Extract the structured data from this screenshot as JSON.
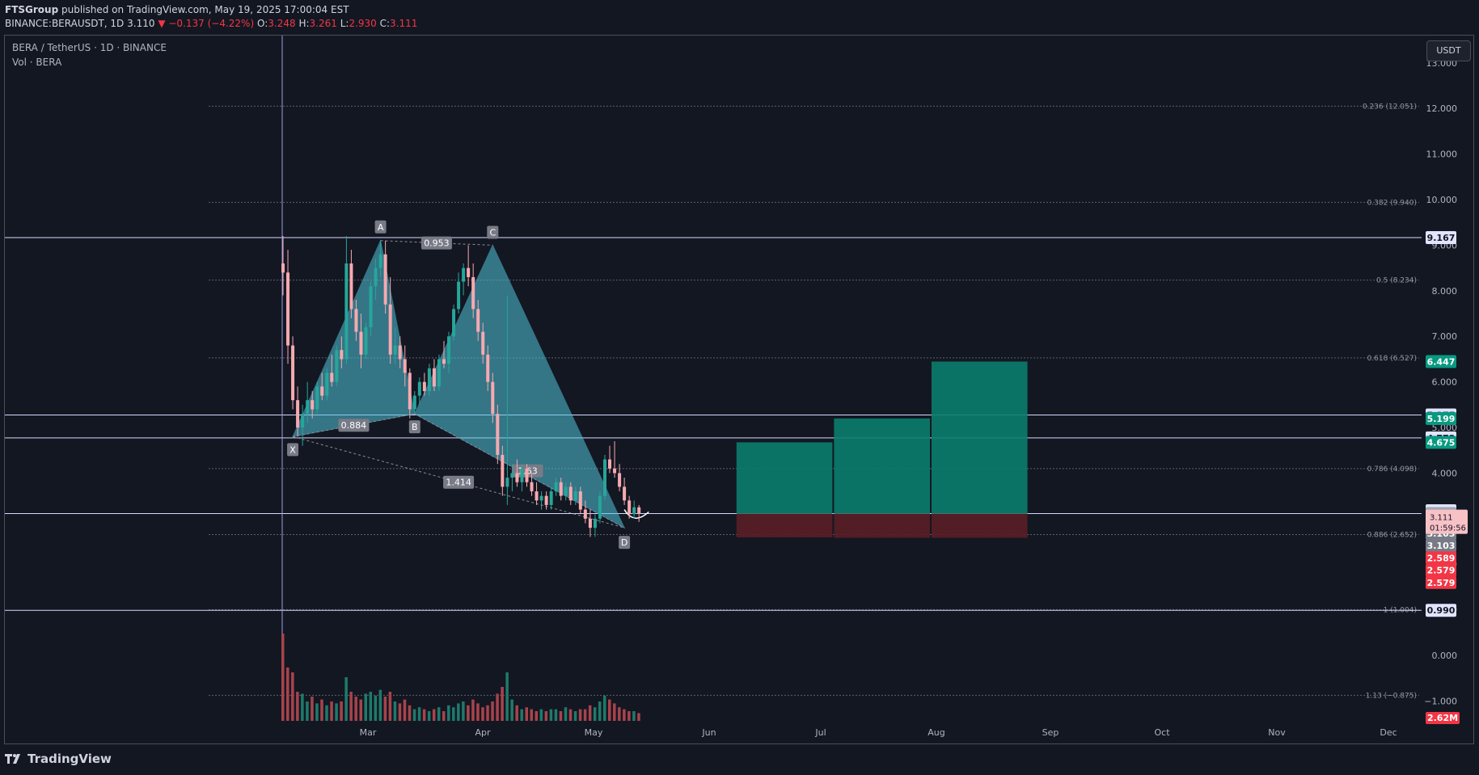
{
  "header": {
    "publisher": "FTSGroup",
    "published_text": "published on TradingView.com, May 19, 2025 17:00:04 EST",
    "ticker": "BINANCE:BERAUSDT, 1D",
    "last": "3.110",
    "change": "−0.137 (−4.22%)",
    "o_label": "O:",
    "o": "3.248",
    "h_label": "H:",
    "h": "3.261",
    "l_label": "L:",
    "l": "2.930",
    "c_label": "C:",
    "c": "3.111"
  },
  "legend": {
    "symbol": "BERA / TetherUS · 1D · BINANCE",
    "volume": "Vol · BERA"
  },
  "currency_button": "USDT",
  "footer": {
    "brand": "TradingView"
  },
  "colors": {
    "background": "#131722",
    "bull": "#26a69a",
    "bear_candle": "#f7a9b0",
    "pattern_fill": "#4fc3d9",
    "target_box": "#0b7d6e",
    "stop_box": "#5a1e26",
    "price_red": "#f23645"
  },
  "chart_data": {
    "type": "candlestick",
    "y_axis": {
      "range": [
        -1.4,
        13.6
      ],
      "ticks": [
        "13.000",
        "12.000",
        "11.000",
        "10.000",
        "9.000",
        "8.000",
        "7.000",
        "6.000",
        "5.000",
        "4.000",
        "3.000",
        "2.000",
        "1.000",
        "0.000",
        "−1.000"
      ]
    },
    "x_axis": {
      "ticks": [
        "Mar",
        "Apr",
        "May",
        "Jun",
        "Jul",
        "Aug",
        "Sep",
        "Oct",
        "Nov",
        "Dec"
      ]
    },
    "price_series": [
      {
        "d": 0,
        "o": 8.6,
        "h": 9.2,
        "l": 7.9,
        "c": 8.4
      },
      {
        "d": 1,
        "o": 8.4,
        "h": 8.9,
        "l": 6.4,
        "c": 6.8
      },
      {
        "d": 2,
        "o": 6.8,
        "h": 7.0,
        "l": 5.4,
        "c": 5.6
      },
      {
        "d": 3,
        "o": 5.6,
        "h": 5.9,
        "l": 4.8,
        "c": 5.0
      },
      {
        "d": 4,
        "o": 5.0,
        "h": 5.5,
        "l": 4.6,
        "c": 5.3
      },
      {
        "d": 5,
        "o": 5.3,
        "h": 6.0,
        "l": 5.1,
        "c": 5.6
      },
      {
        "d": 6,
        "o": 5.6,
        "h": 5.8,
        "l": 5.2,
        "c": 5.4
      },
      {
        "d": 7,
        "o": 5.4,
        "h": 6.0,
        "l": 5.3,
        "c": 5.9
      },
      {
        "d": 8,
        "o": 5.9,
        "h": 6.2,
        "l": 5.6,
        "c": 5.7
      },
      {
        "d": 9,
        "o": 5.7,
        "h": 6.3,
        "l": 5.6,
        "c": 6.2
      },
      {
        "d": 10,
        "o": 6.2,
        "h": 6.6,
        "l": 5.9,
        "c": 6.0
      },
      {
        "d": 11,
        "o": 6.0,
        "h": 6.8,
        "l": 5.9,
        "c": 6.7
      },
      {
        "d": 12,
        "o": 6.7,
        "h": 7.0,
        "l": 6.3,
        "c": 6.5
      },
      {
        "d": 13,
        "o": 6.5,
        "h": 9.2,
        "l": 6.4,
        "c": 8.6
      },
      {
        "d": 14,
        "o": 8.6,
        "h": 8.9,
        "l": 7.4,
        "c": 7.6
      },
      {
        "d": 15,
        "o": 7.6,
        "h": 7.8,
        "l": 6.9,
        "c": 7.1
      },
      {
        "d": 16,
        "o": 7.1,
        "h": 7.5,
        "l": 6.3,
        "c": 6.6
      },
      {
        "d": 17,
        "o": 6.6,
        "h": 7.3,
        "l": 6.5,
        "c": 7.2
      },
      {
        "d": 18,
        "o": 7.2,
        "h": 8.2,
        "l": 7.0,
        "c": 8.1
      },
      {
        "d": 19,
        "o": 8.1,
        "h": 8.7,
        "l": 7.8,
        "c": 8.5
      },
      {
        "d": 20,
        "o": 8.5,
        "h": 9.1,
        "l": 8.3,
        "c": 8.8
      },
      {
        "d": 21,
        "o": 8.8,
        "h": 9.1,
        "l": 7.5,
        "c": 7.7
      },
      {
        "d": 22,
        "o": 7.7,
        "h": 8.3,
        "l": 6.4,
        "c": 6.6
      },
      {
        "d": 23,
        "o": 6.6,
        "h": 7.2,
        "l": 6.4,
        "c": 6.8
      },
      {
        "d": 24,
        "o": 6.8,
        "h": 7.0,
        "l": 6.3,
        "c": 6.5
      },
      {
        "d": 25,
        "o": 6.5,
        "h": 6.8,
        "l": 5.9,
        "c": 6.2
      },
      {
        "d": 26,
        "o": 6.2,
        "h": 6.3,
        "l": 5.2,
        "c": 5.4
      },
      {
        "d": 27,
        "o": 5.4,
        "h": 5.8,
        "l": 5.3,
        "c": 5.7
      },
      {
        "d": 28,
        "o": 5.7,
        "h": 6.1,
        "l": 5.5,
        "c": 6.0
      },
      {
        "d": 29,
        "o": 6.0,
        "h": 6.2,
        "l": 5.7,
        "c": 5.8
      },
      {
        "d": 30,
        "o": 5.8,
        "h": 6.4,
        "l": 5.7,
        "c": 6.3
      },
      {
        "d": 31,
        "o": 6.3,
        "h": 6.5,
        "l": 5.8,
        "c": 5.9
      },
      {
        "d": 32,
        "o": 5.9,
        "h": 6.6,
        "l": 5.8,
        "c": 6.5
      },
      {
        "d": 33,
        "o": 6.5,
        "h": 6.9,
        "l": 6.3,
        "c": 6.4
      },
      {
        "d": 34,
        "o": 6.4,
        "h": 7.1,
        "l": 6.2,
        "c": 7.0
      },
      {
        "d": 35,
        "o": 7.0,
        "h": 7.7,
        "l": 6.9,
        "c": 7.6
      },
      {
        "d": 36,
        "o": 7.6,
        "h": 8.4,
        "l": 7.5,
        "c": 8.2
      },
      {
        "d": 37,
        "o": 8.2,
        "h": 8.6,
        "l": 7.9,
        "c": 8.5
      },
      {
        "d": 38,
        "o": 8.5,
        "h": 9.0,
        "l": 8.1,
        "c": 8.3
      },
      {
        "d": 39,
        "o": 8.3,
        "h": 8.6,
        "l": 7.4,
        "c": 7.6
      },
      {
        "d": 40,
        "o": 7.6,
        "h": 7.8,
        "l": 6.9,
        "c": 7.1
      },
      {
        "d": 41,
        "o": 7.1,
        "h": 7.3,
        "l": 6.4,
        "c": 6.6
      },
      {
        "d": 42,
        "o": 6.6,
        "h": 6.8,
        "l": 5.8,
        "c": 6.0
      },
      {
        "d": 43,
        "o": 6.0,
        "h": 6.2,
        "l": 5.1,
        "c": 5.3
      },
      {
        "d": 44,
        "o": 5.3,
        "h": 5.5,
        "l": 4.2,
        "c": 4.4
      },
      {
        "d": 45,
        "o": 4.4,
        "h": 4.6,
        "l": 3.5,
        "c": 3.7
      },
      {
        "d": 46,
        "o": 3.7,
        "h": 7.9,
        "l": 3.3,
        "c": 3.9
      },
      {
        "d": 47,
        "o": 3.9,
        "h": 4.2,
        "l": 3.6,
        "c": 4.0
      },
      {
        "d": 48,
        "o": 4.0,
        "h": 4.3,
        "l": 3.7,
        "c": 3.8
      },
      {
        "d": 49,
        "o": 3.8,
        "h": 4.2,
        "l": 3.6,
        "c": 4.1
      },
      {
        "d": 50,
        "o": 4.1,
        "h": 4.2,
        "l": 3.7,
        "c": 3.8
      },
      {
        "d": 51,
        "o": 3.8,
        "h": 4.0,
        "l": 3.5,
        "c": 3.6
      },
      {
        "d": 52,
        "o": 3.6,
        "h": 3.8,
        "l": 3.3,
        "c": 3.4
      },
      {
        "d": 53,
        "o": 3.4,
        "h": 3.6,
        "l": 3.2,
        "c": 3.5
      },
      {
        "d": 54,
        "o": 3.5,
        "h": 3.6,
        "l": 3.2,
        "c": 3.3
      },
      {
        "d": 55,
        "o": 3.3,
        "h": 3.7,
        "l": 3.2,
        "c": 3.6
      },
      {
        "d": 56,
        "o": 3.6,
        "h": 3.9,
        "l": 3.5,
        "c": 3.8
      },
      {
        "d": 57,
        "o": 3.8,
        "h": 3.9,
        "l": 3.4,
        "c": 3.5
      },
      {
        "d": 58,
        "o": 3.5,
        "h": 3.8,
        "l": 3.4,
        "c": 3.7
      },
      {
        "d": 59,
        "o": 3.7,
        "h": 3.8,
        "l": 3.3,
        "c": 3.4
      },
      {
        "d": 60,
        "o": 3.4,
        "h": 3.7,
        "l": 3.3,
        "c": 3.6
      },
      {
        "d": 61,
        "o": 3.6,
        "h": 3.7,
        "l": 3.1,
        "c": 3.2
      },
      {
        "d": 62,
        "o": 3.2,
        "h": 3.4,
        "l": 2.9,
        "c": 3.0
      },
      {
        "d": 63,
        "o": 3.0,
        "h": 3.2,
        "l": 2.6,
        "c": 2.8
      },
      {
        "d": 64,
        "o": 2.8,
        "h": 3.1,
        "l": 2.6,
        "c": 3.0
      },
      {
        "d": 65,
        "o": 3.0,
        "h": 3.6,
        "l": 2.9,
        "c": 3.5
      },
      {
        "d": 66,
        "o": 3.5,
        "h": 4.4,
        "l": 3.4,
        "c": 4.3
      },
      {
        "d": 67,
        "o": 4.3,
        "h": 4.6,
        "l": 4.0,
        "c": 4.1
      },
      {
        "d": 68,
        "o": 4.1,
        "h": 4.7,
        "l": 3.9,
        "c": 4.0
      },
      {
        "d": 69,
        "o": 4.0,
        "h": 4.2,
        "l": 3.6,
        "c": 3.7
      },
      {
        "d": 70,
        "o": 3.7,
        "h": 3.9,
        "l": 3.3,
        "c": 3.4
      },
      {
        "d": 71,
        "o": 3.4,
        "h": 3.5,
        "l": 3.0,
        "c": 3.1
      },
      {
        "d": 72,
        "o": 3.1,
        "h": 3.4,
        "l": 3.0,
        "c": 3.25
      },
      {
        "d": 73,
        "o": 3.25,
        "h": 3.3,
        "l": 2.93,
        "c": 3.11
      }
    ],
    "volume_series": [
      0.9,
      0.55,
      0.5,
      0.3,
      0.28,
      0.2,
      0.25,
      0.18,
      0.22,
      0.16,
      0.2,
      0.18,
      0.2,
      0.45,
      0.3,
      0.25,
      0.22,
      0.28,
      0.3,
      0.26,
      0.32,
      0.25,
      0.3,
      0.2,
      0.18,
      0.22,
      0.16,
      0.12,
      0.14,
      0.12,
      0.1,
      0.12,
      0.14,
      0.1,
      0.16,
      0.14,
      0.18,
      0.2,
      0.16,
      0.22,
      0.18,
      0.14,
      0.16,
      0.2,
      0.28,
      0.35,
      0.5,
      0.22,
      0.16,
      0.12,
      0.14,
      0.12,
      0.1,
      0.12,
      0.1,
      0.12,
      0.12,
      0.1,
      0.14,
      0.12,
      0.1,
      0.12,
      0.12,
      0.16,
      0.14,
      0.2,
      0.26,
      0.22,
      0.18,
      0.14,
      0.12,
      0.1,
      0.1,
      0.08
    ],
    "fib_levels": [
      {
        "label": "0.236 (12.051)",
        "value": 12.051
      },
      {
        "label": "0.382 (9.940)",
        "value": 9.94
      },
      {
        "label": "0.5 (8.234)",
        "value": 8.234
      },
      {
        "label": "0.618 (6.527)",
        "value": 6.527
      },
      {
        "label": "0.786 (4.098)",
        "value": 4.098
      },
      {
        "label": "0.886 (2.652)",
        "value": 2.652
      },
      {
        "label": "1 (1.004)",
        "value": 1.004
      },
      {
        "label": "1.13 (−0.875)",
        "value": -0.875
      }
    ],
    "horizontal_lines": [
      9.167,
      5.275,
      4.772,
      3.113,
      0.99
    ],
    "harmonic_points": [
      {
        "label": "X",
        "d": 2,
        "v": 4.8
      },
      {
        "label": "A",
        "d": 20,
        "v": 9.1
      },
      {
        "label": "B",
        "d": 27,
        "v": 5.3
      },
      {
        "label": "C",
        "d": 43,
        "v": 9.0
      },
      {
        "label": "D",
        "d": 70,
        "v": 2.8
      }
    ],
    "ratios": [
      "0.953",
      "0.884",
      "1.414",
      "1.63"
    ],
    "target_boxes": [
      {
        "d1": 93,
        "d2": 113,
        "top": 4.675,
        "bottom": 3.11,
        "stop": 2.589
      },
      {
        "d1": 113,
        "d2": 133,
        "top": 5.199,
        "bottom": 3.11,
        "stop": 2.579
      },
      {
        "d1": 133,
        "d2": 153,
        "top": 6.447,
        "bottom": 3.11,
        "stop": 2.579
      }
    ],
    "price_tags": [
      {
        "text": "9.167",
        "v": 9.167,
        "bg": "#e1e4ff",
        "fg": "#131722"
      },
      {
        "text": "6.447",
        "v": 6.447,
        "bg": "#089981",
        "fg": "#ffffff"
      },
      {
        "text": "5.275",
        "v": 5.275,
        "bg": "#e1e4ff",
        "fg": "#131722"
      },
      {
        "text": "5.199",
        "v": 5.199,
        "bg": "#089981",
        "fg": "#ffffff"
      },
      {
        "text": "4.772",
        "v": 4.772,
        "bg": "#e1e4ff",
        "fg": "#131722"
      },
      {
        "text": "4.675",
        "v": 4.675,
        "bg": "#089981",
        "fg": "#ffffff"
      },
      {
        "text": "3.175",
        "v": 3.175,
        "bg": "#e1e4ff",
        "fg": "#131722"
      },
      {
        "text": "3.113",
        "v": 3.113,
        "bg": "#a3a6af",
        "fg": "#131722"
      },
      {
        "text": "3.103",
        "v": 2.68,
        "bg": "#787b86",
        "fg": "#ffffff"
      },
      {
        "text": "3.103",
        "v": 2.41,
        "bg": "#787b86",
        "fg": "#ffffff"
      },
      {
        "text": "2.589",
        "v": 2.14,
        "bg": "#f23645",
        "fg": "#ffffff"
      },
      {
        "text": "2.579",
        "v": 1.87,
        "bg": "#f23645",
        "fg": "#ffffff"
      },
      {
        "text": "2.579",
        "v": 1.6,
        "bg": "#f23645",
        "fg": "#ffffff"
      },
      {
        "text": "0.990",
        "v": 0.99,
        "bg": "#e1e4ff",
        "fg": "#131722"
      }
    ],
    "current_price": {
      "price": "3.111",
      "countdown": "01:59:56"
    },
    "volume_tag": "2.62M"
  }
}
